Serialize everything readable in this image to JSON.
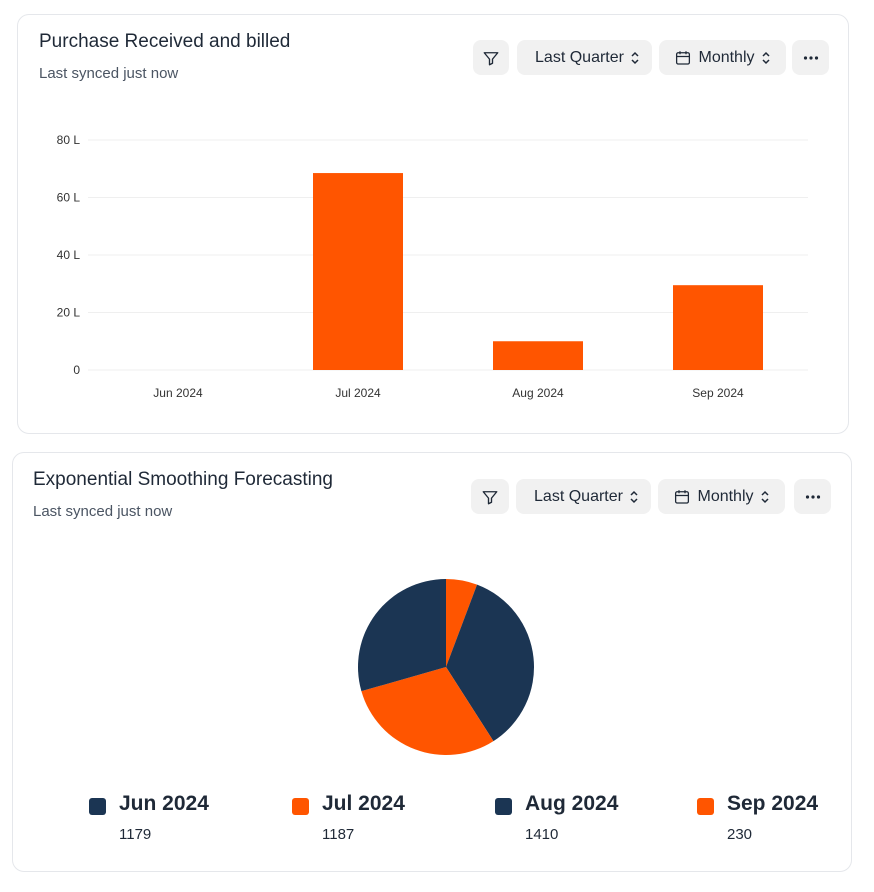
{
  "colors": {
    "primary": "#FF5500",
    "secondary": "#1B3553",
    "grid": "#efefef",
    "button_bg": "#f1f1f1"
  },
  "cards": [
    {
      "title": "Purchase Received and billed",
      "subtitle": "Last synced just now",
      "filter_icon": "filter-icon",
      "range_label": "Last Quarter",
      "period_label": "Monthly",
      "calendar_icon": "calendar-icon",
      "more_icon": "more-horizontal-icon"
    },
    {
      "title": "Exponential Smoothing Forecasting",
      "subtitle": "Last synced just now",
      "filter_icon": "filter-icon",
      "range_label": "Last Quarter",
      "period_label": "Monthly",
      "calendar_icon": "calendar-icon",
      "more_icon": "more-horizontal-icon"
    }
  ],
  "chart_data": [
    {
      "type": "bar",
      "categories": [
        "Jun 2024",
        "Jul 2024",
        "Aug 2024",
        "Sep 2024"
      ],
      "values": [
        0,
        68.5,
        10,
        29.5
      ],
      "y_ticks": [
        "0",
        "20 L",
        "40 L",
        "60 L",
        "80 L"
      ],
      "ylim": [
        0,
        80
      ],
      "grid": true,
      "color": "#FF5500"
    },
    {
      "type": "pie",
      "labels": [
        "Jun 2024",
        "Jul 2024",
        "Aug 2024",
        "Sep 2024"
      ],
      "values": [
        1179,
        1187,
        1410,
        230
      ],
      "value_labels": [
        "1179",
        "1187",
        "1410",
        "230"
      ],
      "colors": [
        "#1B3553",
        "#FF5500",
        "#1B3553",
        "#FF5500"
      ],
      "legend_position": "bottom"
    }
  ]
}
